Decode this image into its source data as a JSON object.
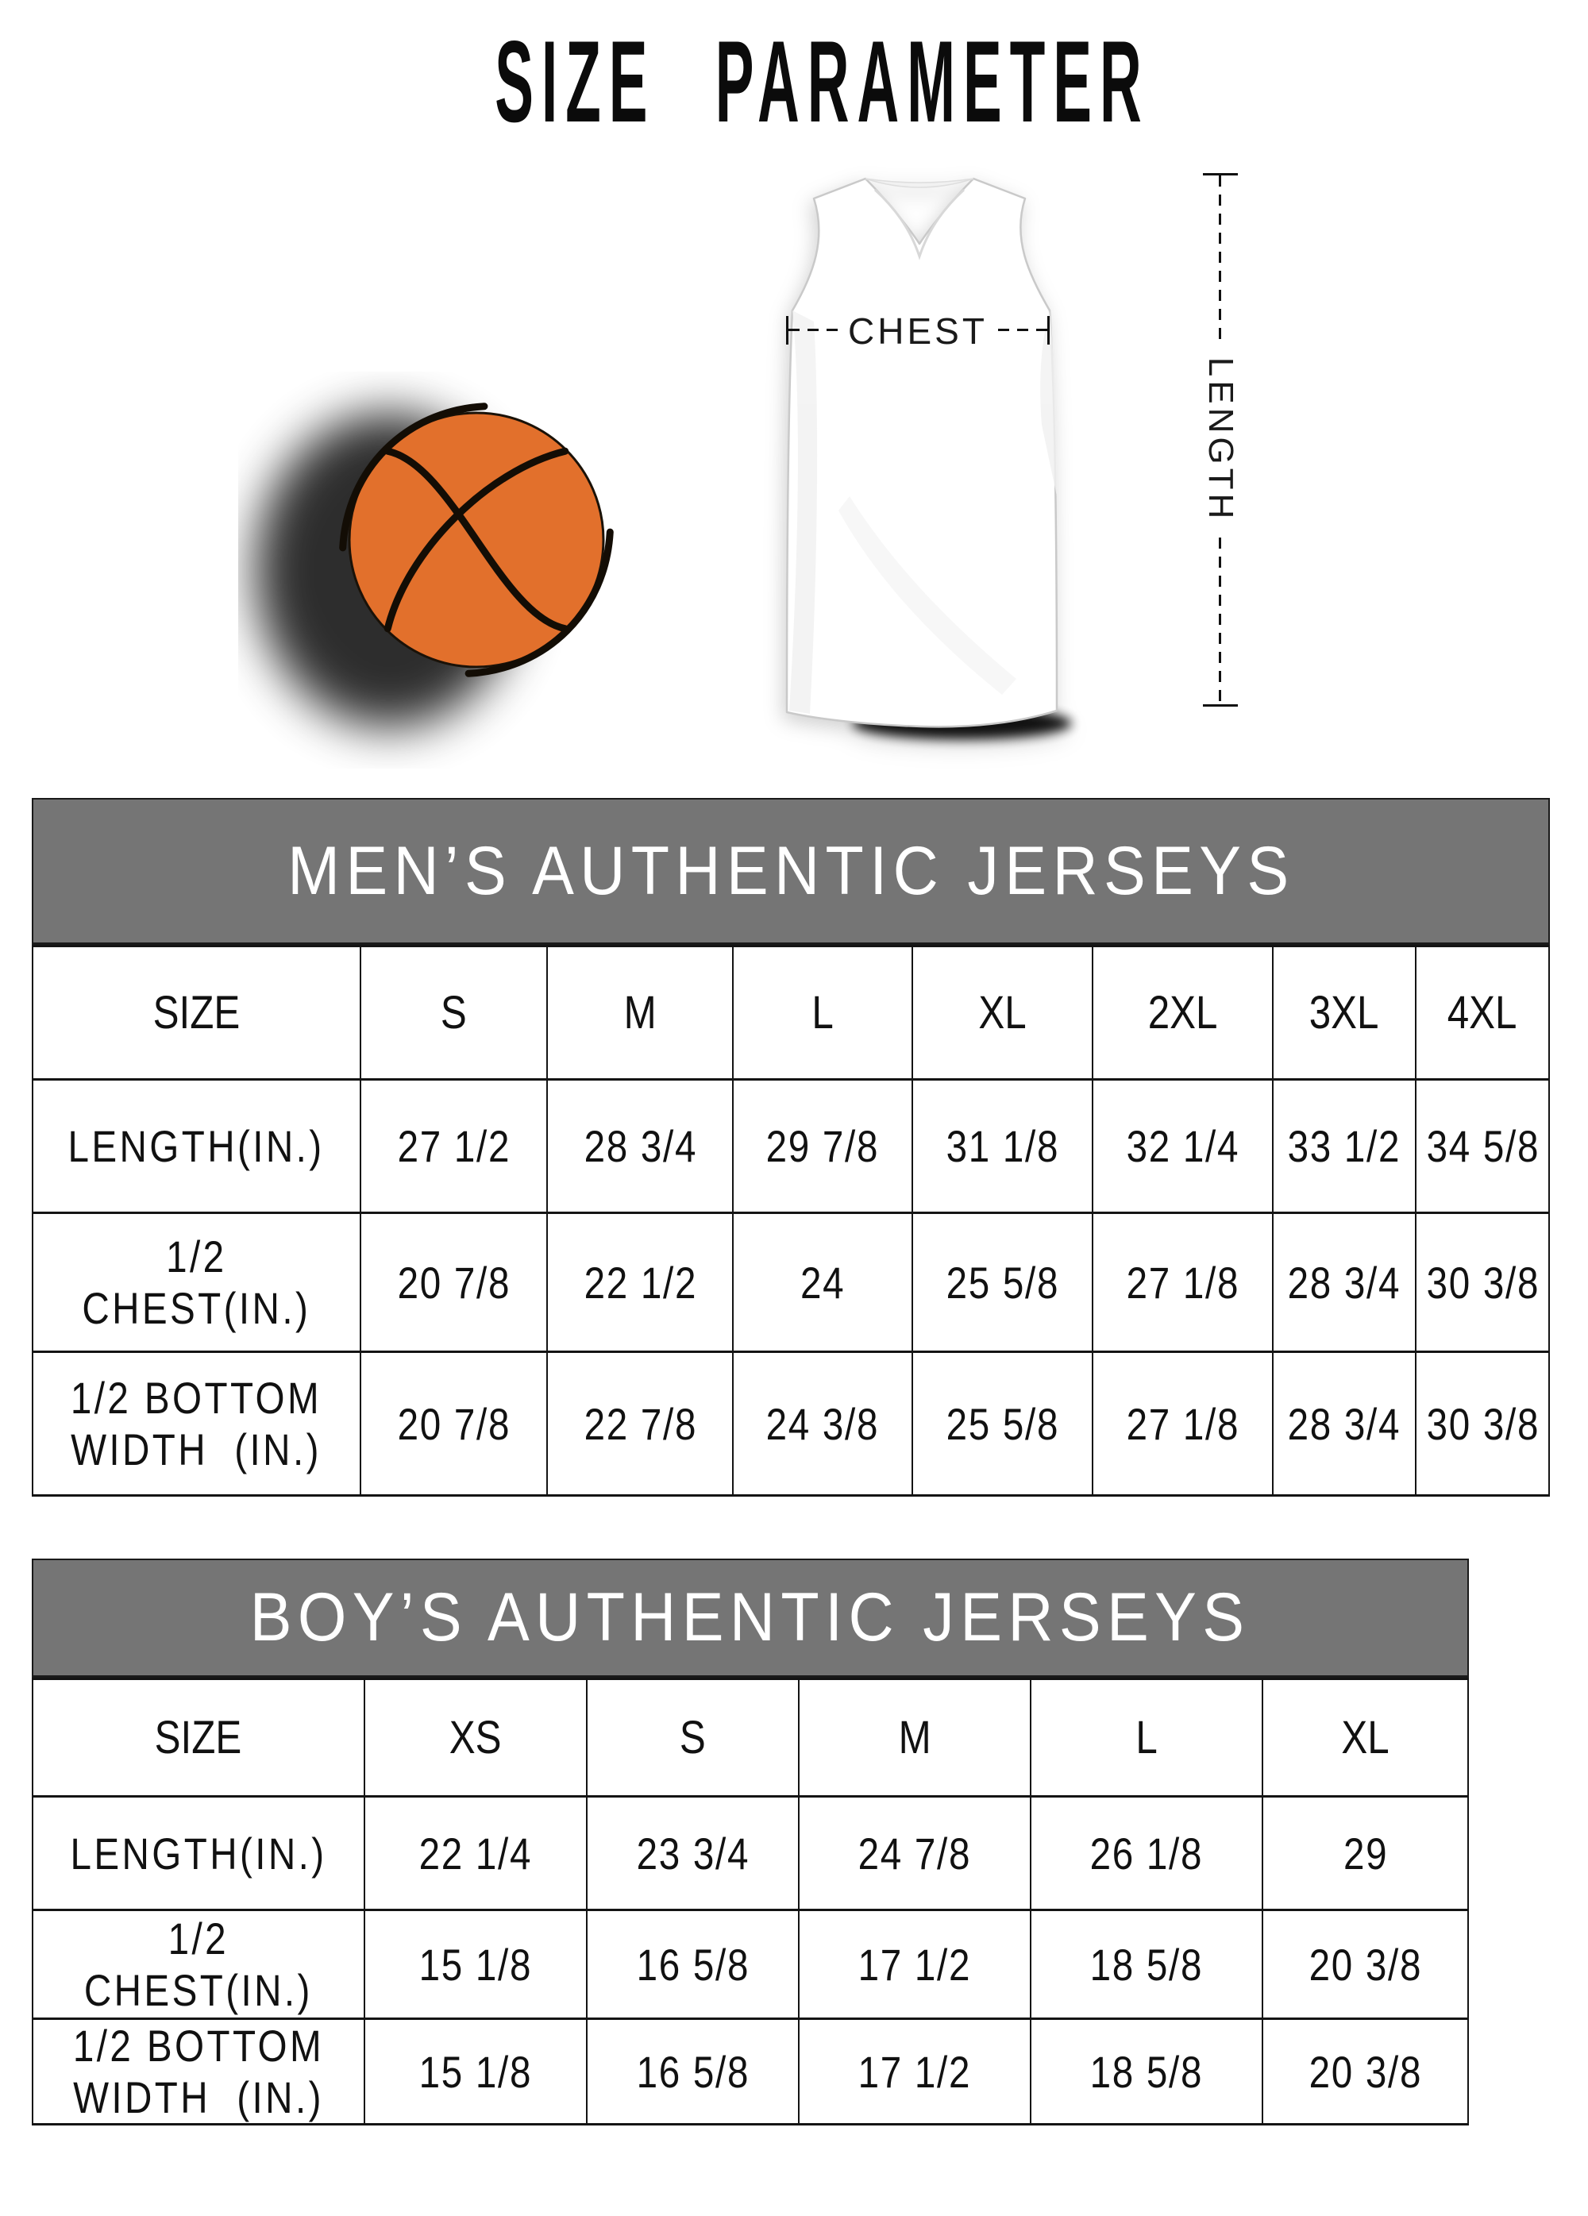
{
  "title": "SIZE PARAMETER",
  "diagram": {
    "chest_label": "CHEST",
    "length_label": "LENGTH"
  },
  "colors": {
    "basketball_orange": "#e2702c",
    "header_band_gray": "#757575"
  },
  "tables": [
    {
      "id": "mens",
      "title": "MEN’S AUTHENTIC JERSEYS",
      "columns": [
        "SIZE",
        "S",
        "M",
        "L",
        "XL",
        "2XL",
        "3XL",
        "4XL"
      ],
      "rows": [
        {
          "label": "LENGTH(IN.)",
          "values": [
            "27 1/2",
            "28 3/4",
            "29 7/8",
            "31 1/8",
            "32 1/4",
            "33 1/2",
            "34 5/8"
          ]
        },
        {
          "label": "1/2 CHEST(IN.)",
          "values": [
            "20 7/8",
            "22 1/2",
            "24",
            "25 5/8",
            "27 1/8",
            "28 3/4",
            "30 3/8"
          ]
        },
        {
          "label": "1/2 BOTTOM\nWIDTH  (IN.)",
          "values": [
            "20 7/8",
            "22 7/8",
            "24 3/8",
            "25 5/8",
            "27 1/8",
            "28 3/4",
            "30 3/8"
          ]
        }
      ]
    },
    {
      "id": "boys",
      "title": "BOY’S AUTHENTIC JERSEYS",
      "columns": [
        "SIZE",
        "XS",
        "S",
        "M",
        "L",
        "XL"
      ],
      "rows": [
        {
          "label": "LENGTH(IN.)",
          "values": [
            "22 1/4",
            "23 3/4",
            "24 7/8",
            "26 1/8",
            "29"
          ]
        },
        {
          "label": "1/2 CHEST(IN.)",
          "values": [
            "15 1/8",
            "16 5/8",
            "17 1/2",
            "18 5/8",
            "20 3/8"
          ]
        },
        {
          "label": "1/2 BOTTOM\nWIDTH  (IN.)",
          "values": [
            "15 1/8",
            "16 5/8",
            "17 1/2",
            "18 5/8",
            "20 3/8"
          ]
        }
      ]
    }
  ]
}
